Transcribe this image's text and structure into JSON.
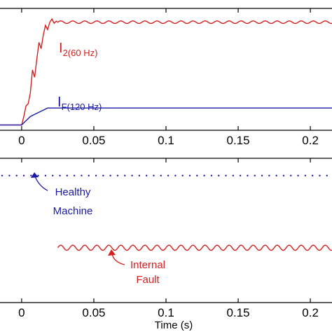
{
  "chart_data": [
    {
      "type": "line",
      "xlim": [
        -0.015,
        0.215
      ],
      "ylim": [
        -0.05,
        1.1
      ],
      "x_ticks": [
        "0",
        "0.05",
        "0.1",
        "0.15",
        "0.2"
      ],
      "x_tick_values": [
        0,
        0.05,
        0.1,
        0.15,
        0.2
      ],
      "grid": false,
      "series": [
        {
          "name": "I2(60 Hz)",
          "label_main": "I",
          "label_sub": "2(60 Hz)",
          "color": "#d42020",
          "points": [
            [
              -0.015,
              0.0
            ],
            [
              0.0,
              0.0
            ],
            [
              0.0015,
              0.08
            ],
            [
              0.003,
              0.18
            ],
            [
              0.0045,
              0.2
            ],
            [
              0.006,
              0.3
            ],
            [
              0.0075,
              0.52
            ],
            [
              0.009,
              0.45
            ],
            [
              0.0105,
              0.62
            ],
            [
              0.012,
              0.78
            ],
            [
              0.0135,
              0.72
            ],
            [
              0.015,
              0.85
            ],
            [
              0.0165,
              0.94
            ],
            [
              0.018,
              0.9
            ],
            [
              0.0195,
              0.97
            ],
            [
              0.021,
              1.0
            ],
            [
              0.0225,
              0.96
            ],
            [
              0.024,
              0.98
            ],
            [
              0.025,
              0.97
            ]
          ],
          "steady_value": 0.97,
          "steady_from": 0.025,
          "ripple_amp": 0.012,
          "ripple_period": 0.00833
        },
        {
          "name": "IF(120 Hz)",
          "label_main": "I",
          "label_sub": "F(120 Hz)",
          "color": "#1a1aa6",
          "points": [
            [
              -0.015,
              0.0
            ],
            [
              0.0,
              0.0
            ],
            [
              0.003,
              0.04
            ],
            [
              0.006,
              0.08
            ],
            [
              0.009,
              0.1
            ],
            [
              0.012,
              0.12
            ],
            [
              0.015,
              0.14
            ],
            [
              0.018,
              0.16
            ],
            [
              0.02,
              0.16
            ]
          ],
          "steady_value": 0.16,
          "steady_from": 0.02,
          "ripple_amp": 0.0,
          "ripple_period": 0.00833
        }
      ]
    },
    {
      "type": "line",
      "xlabel": "Time (s)",
      "xlim": [
        -0.015,
        0.215
      ],
      "ylim": [
        0,
        1
      ],
      "x_ticks": [
        "0",
        "0.05",
        "0.1",
        "0.15",
        "0.2"
      ],
      "x_tick_values": [
        0,
        0.05,
        0.1,
        0.15,
        0.2
      ],
      "grid": false,
      "series": [
        {
          "name": "Healthy Machine",
          "color": "#1a1aa6",
          "style": "dotted",
          "x_start": -0.015,
          "x_end": 0.215,
          "value": 0.88
        },
        {
          "name": "Internal Fault",
          "color": "#d42020",
          "style": "solid",
          "x_start": 0.025,
          "x_end": 0.215,
          "value": 0.38,
          "ripple_amp": 0.018,
          "ripple_period": 0.00833
        }
      ],
      "annotations": [
        {
          "lines": [
            "Healthy",
            "Machine"
          ],
          "color": "#1a1aa6"
        },
        {
          "lines": [
            "Internal",
            "Fault"
          ],
          "color": "#d42020"
        }
      ]
    }
  ]
}
